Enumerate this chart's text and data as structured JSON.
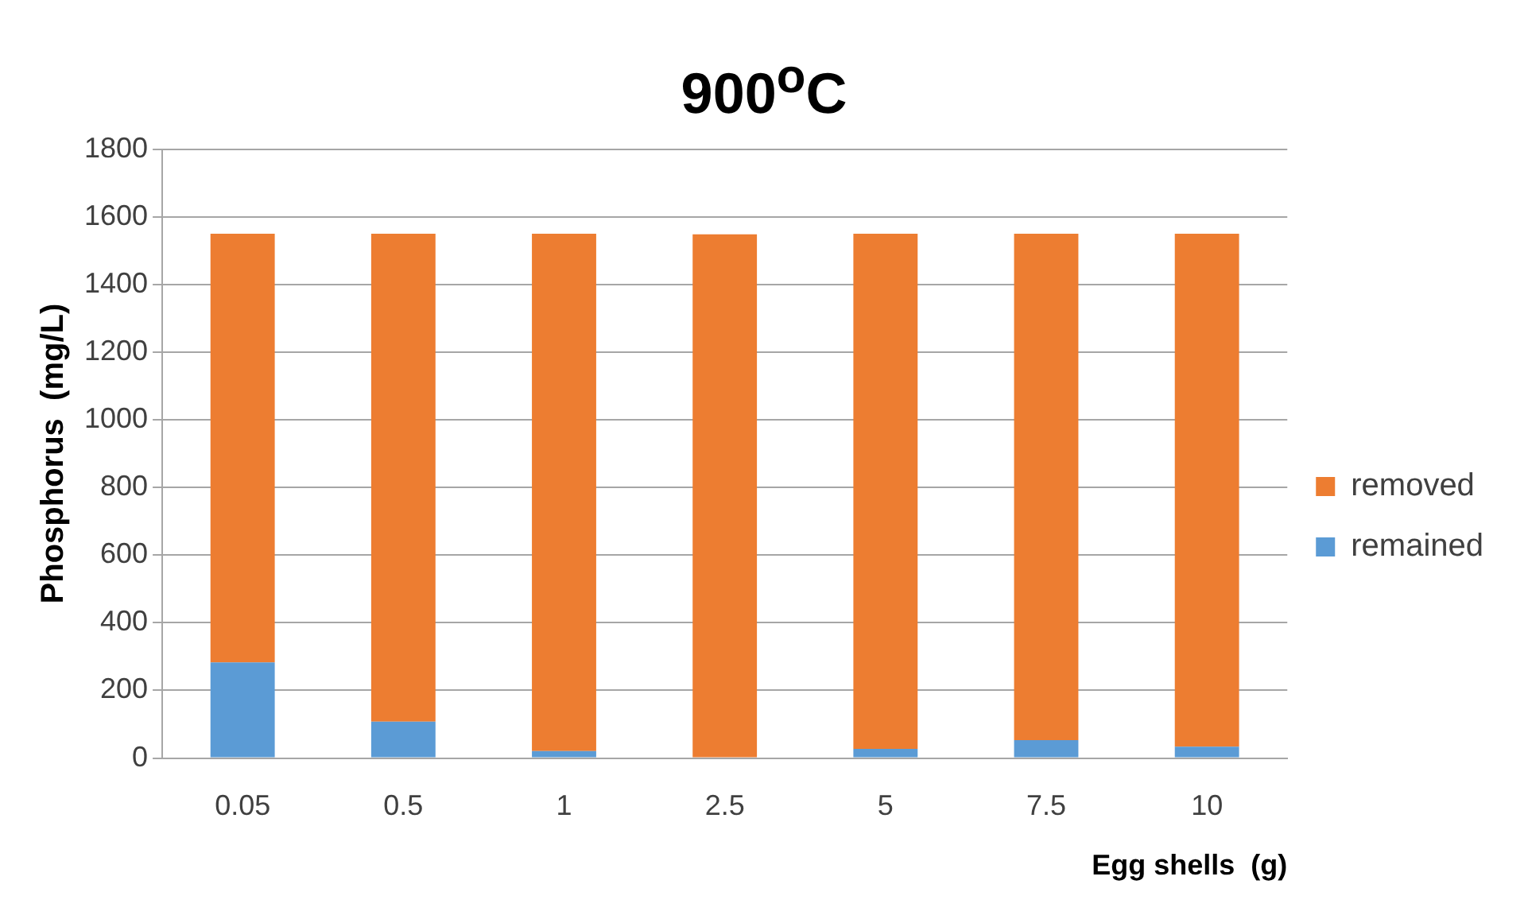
{
  "chart_data": {
    "type": "bar",
    "title": "900$^{o}$C",
    "xlabel": "Egg shells  (g)",
    "ylabel": "Phosphorus  (mg/L)",
    "categories": [
      "0.05",
      "0.5",
      "1",
      "2.5",
      "5",
      "7.5",
      "10"
    ],
    "series": [
      {
        "name": "remained",
        "color": "#5b9bd5",
        "values": [
          283,
          108,
          21,
          null,
          27,
          53,
          34
        ]
      },
      {
        "name": "removed",
        "color": "#ed7d31",
        "values": [
          1267,
          1442,
          1529,
          1548,
          1523,
          1497,
          1516
        ]
      }
    ],
    "stacked": true,
    "ylim": [
      0,
      1800
    ],
    "yticks": [
      0,
      200,
      400,
      600,
      800,
      1000,
      1200,
      1400,
      1600,
      1800
    ],
    "grid": "y",
    "legend": "right"
  }
}
